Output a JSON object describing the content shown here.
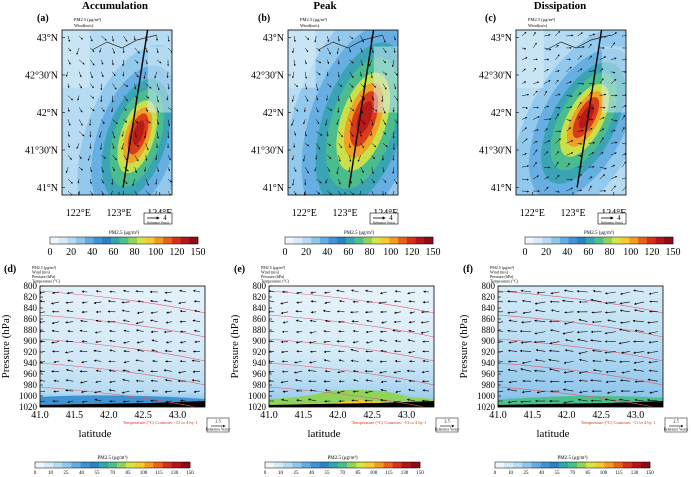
{
  "colors": {
    "pm_scale": [
      "#eef6fb",
      "#d6ebf7",
      "#b6dbf2",
      "#8fc6ec",
      "#63ace0",
      "#3f93d2",
      "#2a82c4",
      "#35a3b0",
      "#4cbf8a",
      "#8fd35a",
      "#d7e342",
      "#f6c92c",
      "#f29a20",
      "#e9621c",
      "#d5311a",
      "#b5151a",
      "#8e0b16"
    ],
    "contour": "#e05a6a",
    "section_line": "#000000",
    "background": "#ffffff"
  },
  "panels_top": [
    {
      "letter": "(a)",
      "title": "Accumulation",
      "legend_l1": "PM2.5 (μg/m³)",
      "legend_l2": "Wind(m/s)"
    },
    {
      "letter": "(b)",
      "title": "Peak",
      "legend_l1": "PM2.5 (μg/m³)",
      "legend_l2": "Wind(m/s)"
    },
    {
      "letter": "(c)",
      "title": "Dissipation",
      "legend_l1": "PM2.5 (μg/m³)",
      "legend_l2": "Wind(m/s)"
    }
  ],
  "panels_bottom": [
    {
      "letter": "(d)",
      "legend": [
        "PM2.5 (μg/m³)",
        "Wind (m/s)",
        "Pressure (hPa)",
        "Temperature (°C)"
      ],
      "caption": "Temperature (°C) Contours: -15 to 4 by 1",
      "ref_value": "2.5",
      "ref_label": "Reference Vector"
    },
    {
      "letter": "(e)",
      "legend": [
        "PM2.5 (μg/m³)",
        "Wind (m/s)",
        "Pressure (hPa)",
        "Temperature (°C)"
      ],
      "caption": "Temperature (°C) Contours: -13 to 4 by 1",
      "ref_value": "2.5",
      "ref_label": "Reference Vector"
    },
    {
      "letter": "(f)",
      "legend": [
        "PM2.5 (μg/m³)",
        "Wind (m/s)",
        "Pressure (hPa)",
        "Temperature (°C)"
      ],
      "caption": "Temperature (°C) Contours: -11 to 4 by 1",
      "ref_value": "2.5",
      "ref_label": "Reference Vector"
    }
  ],
  "map_ref": {
    "value": "4",
    "label": "Reference Vector"
  },
  "colorbar_top": {
    "title": "PM2.5 (μg/m³)",
    "ticks": [
      "0",
      "20",
      "40",
      "60",
      "80",
      "100",
      "120",
      "150"
    ]
  },
  "colorbar_bottom": {
    "title": "PM2.5 (μg/m³)",
    "ticks": [
      "0",
      "10",
      "25",
      "40",
      "55",
      "70",
      "85",
      "100",
      "115",
      "130",
      "150"
    ]
  },
  "chart_data": [
    {
      "type": "heatmap",
      "title": "Accumulation",
      "panel": "(a)",
      "x_ticks": [
        "122°E",
        "123°E",
        "124°E"
      ],
      "y_ticks": [
        "43°N",
        "42°30'N",
        "42°N",
        "41°30'N",
        "41°N"
      ],
      "xlim": [
        121.6,
        124.3
      ],
      "ylim": [
        40.9,
        43.1
      ],
      "hotspot": {
        "lon": 123.4,
        "lat": 41.6,
        "pm25": 150
      },
      "section_line": {
        "start": [
          123.1,
          41.0
        ],
        "end": [
          123.7,
          43.1
        ]
      }
    },
    {
      "type": "heatmap",
      "title": "Peak",
      "panel": "(b)",
      "x_ticks": [
        "122°E",
        "123°E",
        "124°E"
      ],
      "y_ticks": [
        "43°N",
        "42°30'N",
        "42°N",
        "41°30'N",
        "41°N"
      ],
      "xlim": [
        121.6,
        124.3
      ],
      "ylim": [
        40.9,
        43.1
      ],
      "hotspot": {
        "lon": 123.4,
        "lat": 41.8,
        "pm25": 150
      },
      "section_line": {
        "start": [
          123.1,
          41.0
        ],
        "end": [
          123.7,
          43.1
        ]
      }
    },
    {
      "type": "heatmap",
      "title": "Dissipation",
      "panel": "(c)",
      "x_ticks": [
        "122°E",
        "123°E",
        "124°E"
      ],
      "y_ticks": [
        "43°N",
        "42°30'N",
        "42°N",
        "41°30'N",
        "41°N"
      ],
      "xlim": [
        121.6,
        124.3
      ],
      "ylim": [
        40.9,
        43.1
      ],
      "hotspot": {
        "lon": 123.3,
        "lat": 41.8,
        "pm25": 150
      },
      "section_line": {
        "start": [
          123.1,
          41.0
        ],
        "end": [
          123.7,
          43.1
        ]
      }
    },
    {
      "type": "heatmap",
      "panel": "(d)",
      "xlabel": "latitude",
      "ylabel": "Pressure (hPa)",
      "x_ticks": [
        "41.0",
        "41.5",
        "42.0",
        "42.5",
        "43.0"
      ],
      "y_ticks": [
        "800",
        "820",
        "840",
        "860",
        "880",
        "900",
        "920",
        "940",
        "960",
        "980",
        "1000",
        "1020"
      ],
      "xlim": [
        41.0,
        43.4
      ],
      "ylim": [
        1020,
        800
      ]
    },
    {
      "type": "heatmap",
      "panel": "(e)",
      "xlabel": "latitude",
      "ylabel": "Pressure (hPa)",
      "x_ticks": [
        "41.0",
        "41.5",
        "42.0",
        "42.5",
        "43.0"
      ],
      "y_ticks": [
        "800",
        "820",
        "840",
        "860",
        "880",
        "900",
        "920",
        "940",
        "960",
        "980",
        "1000",
        "1020"
      ],
      "xlim": [
        41.0,
        43.4
      ],
      "ylim": [
        1020,
        800
      ]
    },
    {
      "type": "heatmap",
      "panel": "(f)",
      "xlabel": "latitude",
      "ylabel": "Pressure (hPa)",
      "x_ticks": [
        "41.0",
        "41.5",
        "42.0",
        "42.5",
        "43.0"
      ],
      "y_ticks": [
        "800",
        "820",
        "840",
        "860",
        "880",
        "900",
        "920",
        "940",
        "960",
        "980",
        "1000",
        "1020"
      ],
      "xlim": [
        41.0,
        43.4
      ],
      "ylim": [
        1020,
        800
      ]
    }
  ]
}
